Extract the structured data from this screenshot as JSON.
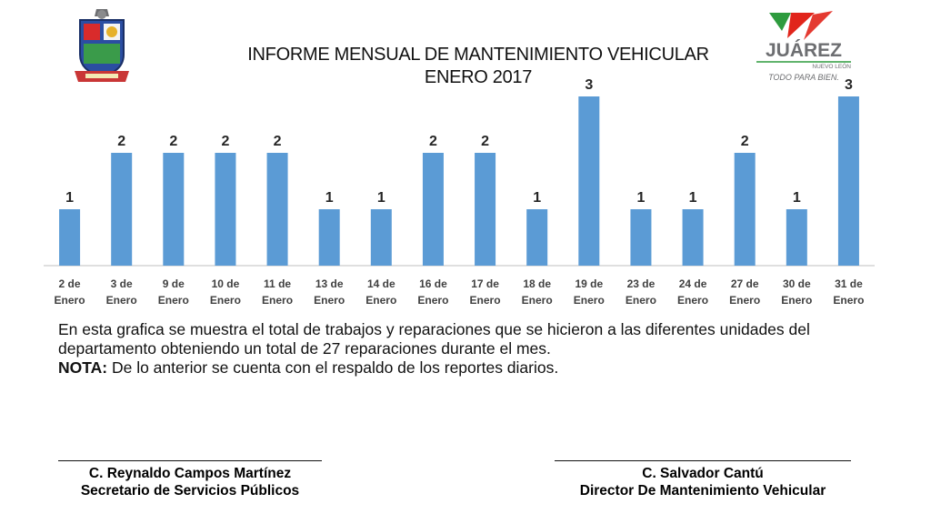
{
  "header": {
    "title_line1": "INFORME MENSUAL DE MANTENIMIENTO VEHICULAR",
    "title_line2": "ENERO 2017"
  },
  "logo": {
    "name": "JUÁREZ",
    "subtitle": "NUEVO LEÓN",
    "slogan": "TODO PARA BIEN.",
    "colors": {
      "green": "#2e9b3e",
      "red": "#e1251b",
      "gray": "#6d6e71"
    }
  },
  "crest": {
    "icon": "municipal-coat-of-arms-icon"
  },
  "chart_data": {
    "type": "bar",
    "categories": [
      [
        "2 de",
        "Enero"
      ],
      [
        "3 de",
        "Enero"
      ],
      [
        "9 de",
        "Enero"
      ],
      [
        "10 de",
        "Enero"
      ],
      [
        "11 de",
        "Enero"
      ],
      [
        "13 de",
        "Enero"
      ],
      [
        "14 de",
        "Enero"
      ],
      [
        "16 de",
        "Enero"
      ],
      [
        "17 de",
        "Enero"
      ],
      [
        "18 de",
        "Enero"
      ],
      [
        "19 de",
        "Enero"
      ],
      [
        "23 de",
        "Enero"
      ],
      [
        "24 de",
        "Enero"
      ],
      [
        "27 de",
        "Enero"
      ],
      [
        "30 de",
        "Enero"
      ],
      [
        "31 de",
        "Enero"
      ]
    ],
    "values": [
      1,
      2,
      2,
      2,
      2,
      1,
      1,
      2,
      2,
      1,
      3,
      1,
      1,
      2,
      1,
      3
    ],
    "ylim": [
      0,
      3
    ],
    "grid": false,
    "data_labels": true,
    "bar_color": "#5b9bd5"
  },
  "note": {
    "text": "En esta grafica se muestra el total de trabajos y reparaciones que se hicieron a las diferentes unidades del departamento obteniendo un total de  27 reparaciones durante el mes.",
    "label": "NOTA:",
    "text2": " De lo anterior se cuenta con el respaldo de los reportes diarios."
  },
  "signatures": [
    {
      "name": "C. Reynaldo Campos Martínez",
      "role": "Secretario de Servicios Públicos"
    },
    {
      "name": "C. Salvador Cantú",
      "role": "Director De Mantenimiento Vehicular"
    }
  ]
}
